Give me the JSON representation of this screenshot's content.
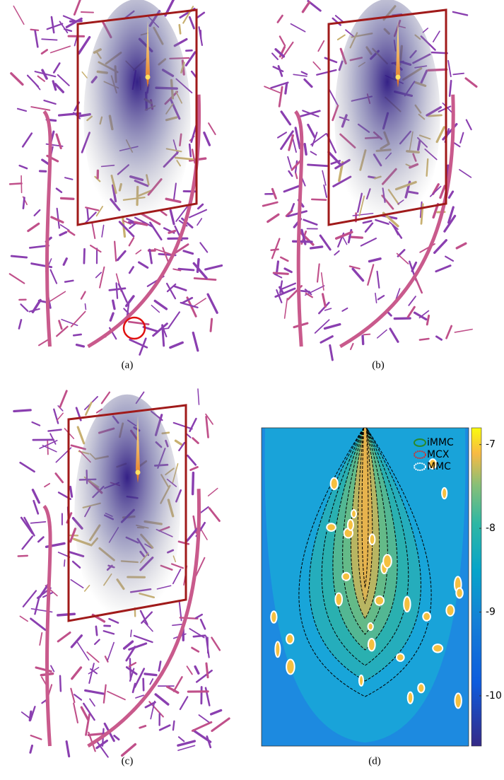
{
  "captions": [
    "(a)",
    "(b)",
    "(c)",
    "(d)"
  ],
  "panel_d": {
    "legend": [
      "iMMC",
      "MCX",
      "MMC"
    ],
    "clim": [
      -10.6,
      -6.8
    ],
    "cticks": [
      -7,
      -8,
      -9,
      -10
    ]
  }
}
